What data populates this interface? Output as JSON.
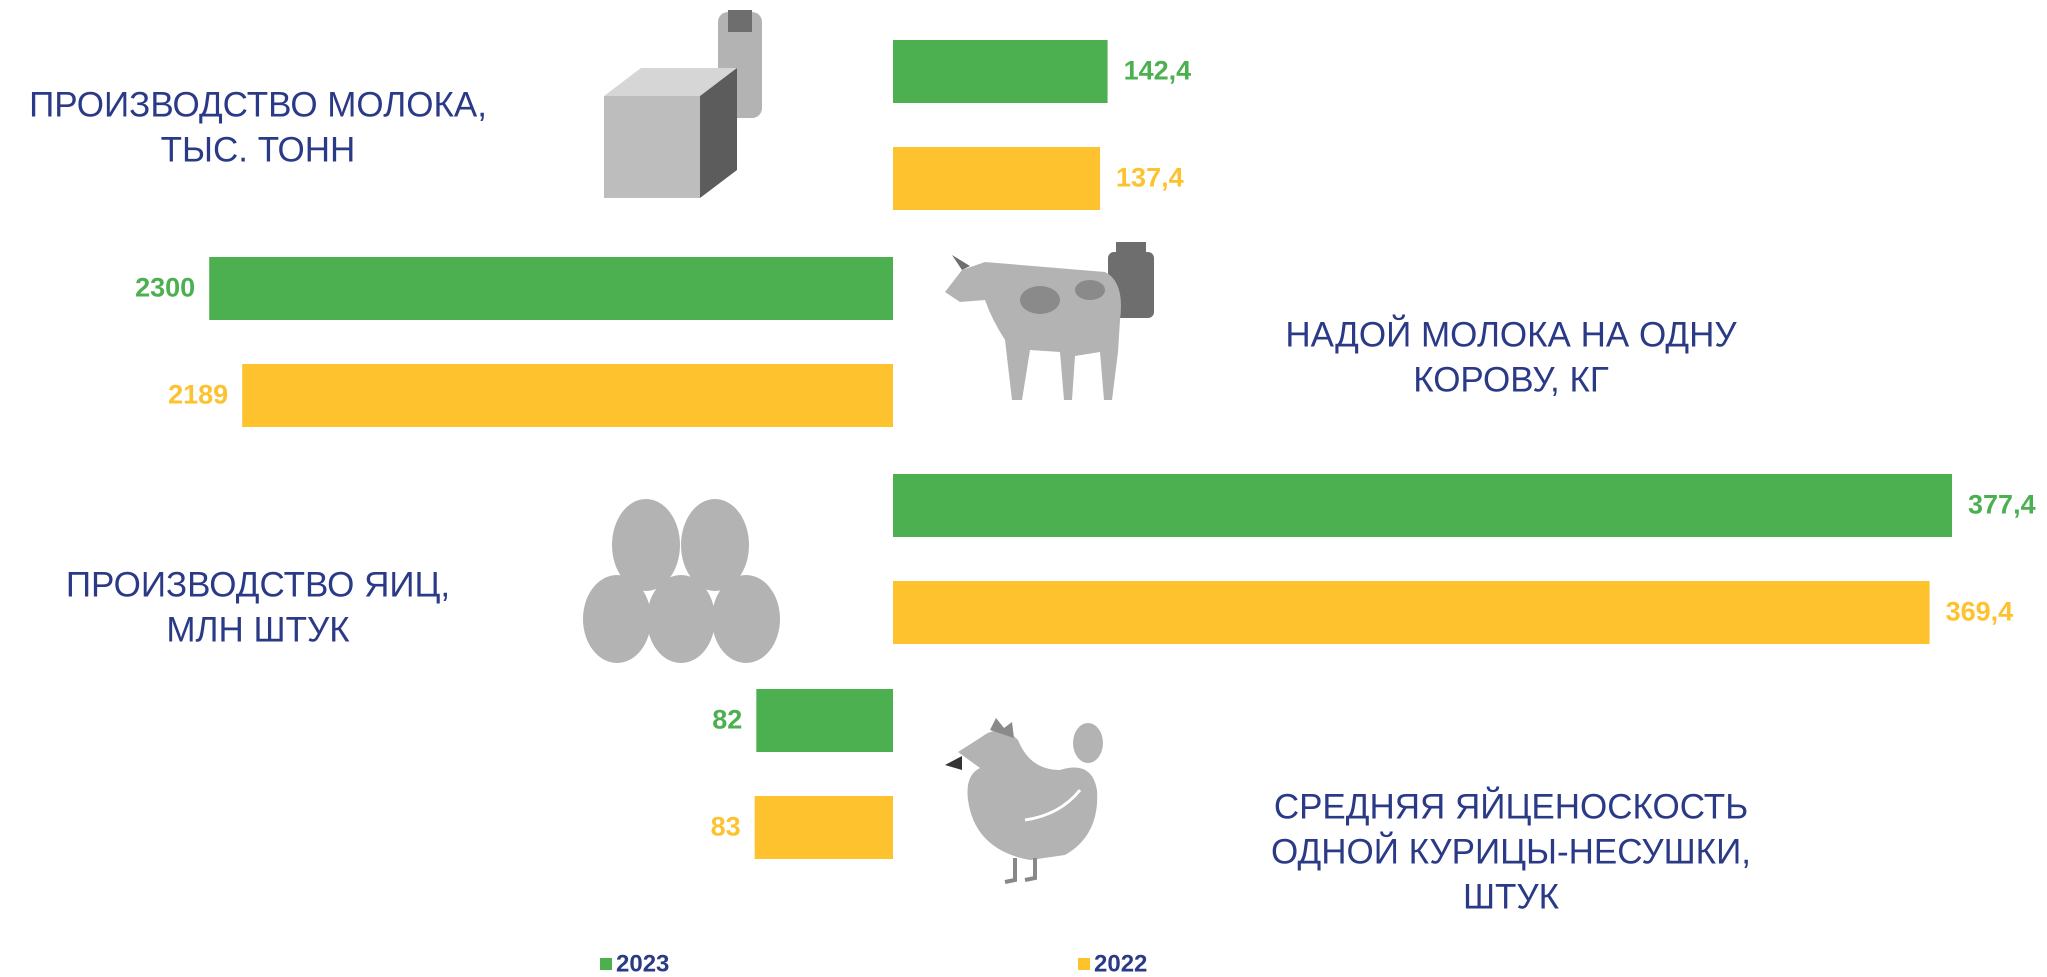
{
  "chart_data": {
    "type": "bar",
    "orientation": "horizontal",
    "categories": [
      [
        "ПРОИЗВОДСТВО МОЛОКА,",
        "ТЫС. ТОНН"
      ],
      [
        "НАДОЙ МОЛОКА НА ОДНУ",
        "КОРОВУ, КГ"
      ],
      [
        "ПРОИЗВОДСТВО ЯИЦ,",
        "МЛН ШТУК"
      ],
      [
        "СРЕДНЯЯ ЯЙЦЕНОСКОСТЬ",
        "ОДНОЙ КУРИЦЫ-НЕСУШКИ,",
        "ШТУК"
      ]
    ],
    "xlims": [
      [
        0,
        730
      ],
      [
        3700,
        0
      ],
      [
        0,
        392
      ],
      [
        660,
        0
      ]
    ],
    "series": [
      {
        "name": "2023",
        "color": "#4caf50",
        "values": [
          142.4,
          2300,
          377.4,
          82
        ],
        "value_labels": [
          "142,4",
          "2300",
          "377,4",
          "82"
        ]
      },
      {
        "name": "2022",
        "color": "#fec22f",
        "values": [
          137.4,
          2189,
          369.4,
          83
        ],
        "value_labels": [
          "137,4",
          "2189",
          "369,4",
          "83"
        ]
      }
    ],
    "legend": "bottom"
  }
}
